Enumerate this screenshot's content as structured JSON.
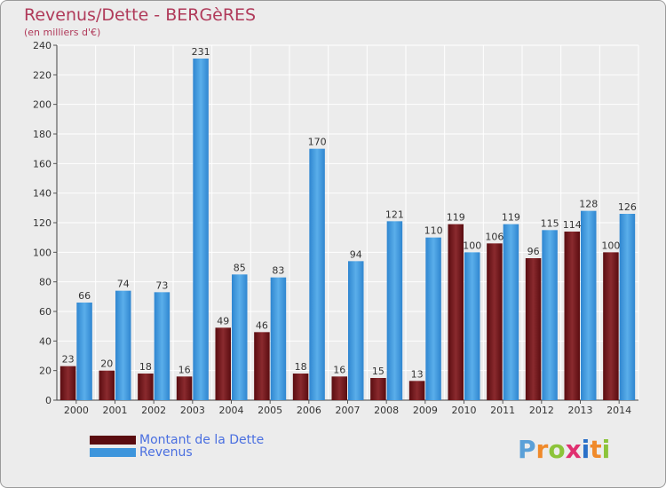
{
  "header": {
    "title": "Revenus/Dette - BERGèRES",
    "subtitle": "(en milliers d'€)"
  },
  "chart_data": {
    "type": "bar",
    "categories": [
      "2000",
      "2001",
      "2002",
      "2003",
      "2004",
      "2005",
      "2006",
      "2007",
      "2008",
      "2009",
      "2010",
      "2011",
      "2012",
      "2013",
      "2014"
    ],
    "series": [
      {
        "name": "Montant de la Dette",
        "color": "#7a1a1e",
        "values": [
          23,
          20,
          18,
          16,
          49,
          46,
          18,
          16,
          15,
          13,
          119,
          106,
          96,
          114,
          100
        ]
      },
      {
        "name": "Revenus",
        "color": "#3d95dc",
        "values": [
          66,
          74,
          73,
          231,
          85,
          83,
          170,
          94,
          121,
          110,
          100,
          119,
          115,
          128,
          126
        ]
      }
    ],
    "ylim": [
      0,
      240
    ],
    "yticks": [
      0,
      20,
      40,
      60,
      80,
      100,
      120,
      140,
      160,
      180,
      200,
      220,
      240
    ],
    "grid": true,
    "legend_position": "bottom-left"
  },
  "legend": {
    "items": [
      {
        "label": "Montant de la Dette",
        "color": "#5a0c10"
      },
      {
        "label": "Revenus",
        "color": "#3d95dc"
      }
    ]
  },
  "logo": {
    "letters": [
      "P",
      "r",
      "o",
      "x",
      "i",
      "t",
      "i"
    ],
    "colors": [
      "#5aa0d8",
      "#f08a2a",
      "#8cc43a",
      "#e03070",
      "#2a70c8",
      "#f08a2a",
      "#8cc43a"
    ]
  }
}
